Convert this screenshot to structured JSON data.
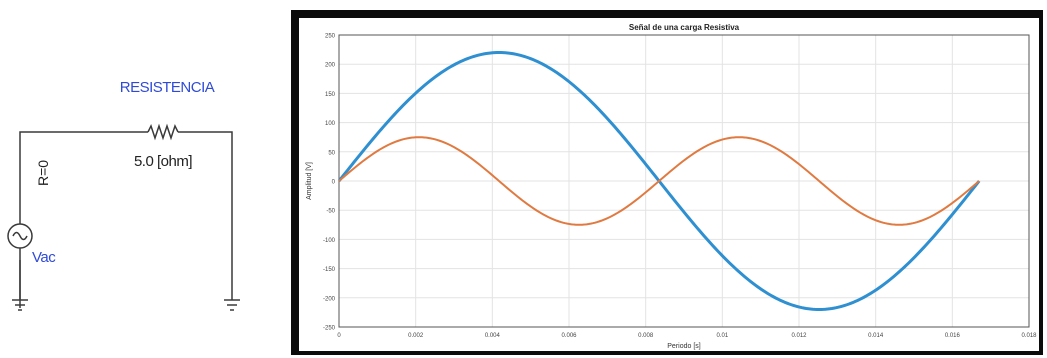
{
  "circuit": {
    "title_label": "RESISTENCIA",
    "resistor_value": "5.0 [ohm]",
    "internal_resistance": "R=0",
    "source_label": "Vac",
    "colors": {
      "wire": "#3a3a3a",
      "label_blue": "#2f4bd6",
      "text": "#222222"
    }
  },
  "chart_data": {
    "type": "line",
    "title": "Señal de una carga Resistiva",
    "xlabel": "Periodo [s]",
    "ylabel": "Amplitud [V]",
    "xlim": [
      0,
      0.0167
    ],
    "ylim": [
      -250,
      250
    ],
    "xticks": [
      "0",
      "0.002",
      "0.004",
      "0.006",
      "0.008",
      "0.01",
      "0.012",
      "0.014",
      "0.016",
      "0.018"
    ],
    "yticks": [
      "250",
      "200",
      "150",
      "100",
      "50",
      "0",
      "-50",
      "-100",
      "-150",
      "-200",
      "-250"
    ],
    "grid": true,
    "series": [
      {
        "color": "#2e8fd1",
        "function": "sine",
        "amplitude": 220,
        "period": 0.0167
      },
      {
        "color": "#e07a40",
        "function": "sine",
        "amplitude": 75,
        "period": 0.00835
      }
    ]
  }
}
